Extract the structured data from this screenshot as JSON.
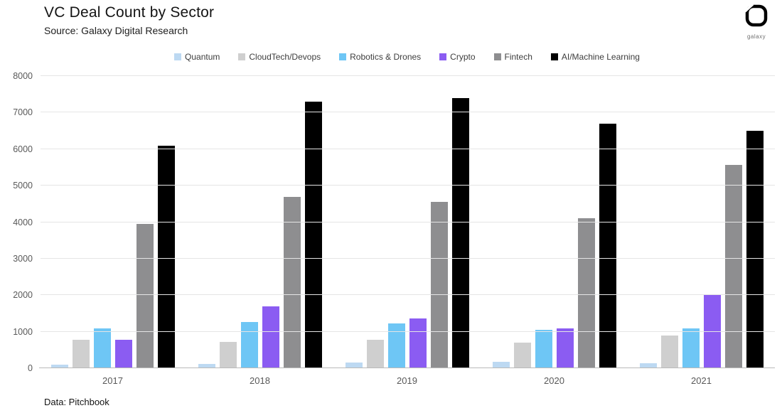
{
  "header": {
    "title": "VC Deal Count by Sector",
    "subtitle": "Source: Galaxy Digital Research",
    "logo_text": "galaxy"
  },
  "footer": {
    "text": "Data: Pitchbook"
  },
  "chart_data": {
    "type": "bar",
    "title": "VC Deal Count by Sector",
    "xlabel": "",
    "ylabel": "",
    "grid": true,
    "legend_position": "top",
    "ylim": [
      0,
      8000
    ],
    "yticks": [
      0,
      1000,
      2000,
      3000,
      4000,
      5000,
      6000,
      7000,
      8000
    ],
    "categories": [
      "2017",
      "2018",
      "2019",
      "2020",
      "2021"
    ],
    "series": [
      {
        "name": "Quantum",
        "color": "#bdd9f2",
        "values": [
          90,
          120,
          150,
          180,
          140
        ]
      },
      {
        "name": "CloudTech/Devops",
        "color": "#cfcfcf",
        "values": [
          780,
          720,
          780,
          700,
          900
        ]
      },
      {
        "name": "Robotics & Drones",
        "color": "#6ec6f5",
        "values": [
          1100,
          1270,
          1230,
          1050,
          1100
        ]
      },
      {
        "name": "Crypto",
        "color": "#8b5cf2",
        "values": [
          770,
          1700,
          1370,
          1100,
          2000
        ]
      },
      {
        "name": "Fintech",
        "color": "#8e8e90",
        "values": [
          3950,
          4700,
          4550,
          4100,
          5560
        ]
      },
      {
        "name": "AI/Machine Learning",
        "color": "#000000",
        "values": [
          6100,
          7300,
          7400,
          6700,
          6500
        ]
      }
    ]
  }
}
